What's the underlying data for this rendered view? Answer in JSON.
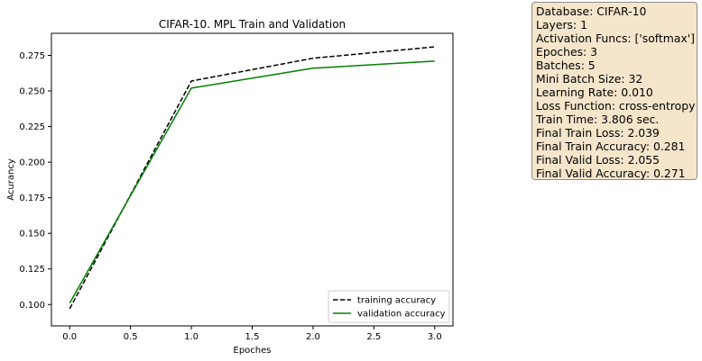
{
  "chart_data": {
    "type": "line",
    "title": "CIFAR-10. MPL Train and Validation",
    "xlabel": "Epoches",
    "ylabel": "Acurancy",
    "xlim": [
      -0.15,
      3.15
    ],
    "ylim": [
      0.085,
      0.2905
    ],
    "x_ticks": [
      0.0,
      0.5,
      1.0,
      1.5,
      2.0,
      2.5,
      3.0
    ],
    "x_tick_labels": [
      "0.0",
      "0.5",
      "1.0",
      "1.5",
      "2.0",
      "2.5",
      "3.0"
    ],
    "y_ticks": [
      0.1,
      0.125,
      0.15,
      0.175,
      0.2,
      0.225,
      0.25,
      0.275
    ],
    "y_tick_labels": [
      "0.100",
      "0.125",
      "0.150",
      "0.175",
      "0.200",
      "0.225",
      "0.250",
      "0.275"
    ],
    "grid": false,
    "legend_placement": "lower-right",
    "x": [
      0,
      1,
      2,
      3
    ],
    "series": [
      {
        "name": "training accuracy",
        "values": [
          0.097,
          0.257,
          0.273,
          0.281
        ],
        "color": "#000000",
        "style": "dashed"
      },
      {
        "name": "validation accuracy",
        "values": [
          0.101,
          0.252,
          0.266,
          0.271
        ],
        "color": "#008000",
        "style": "solid"
      }
    ]
  },
  "info_box": {
    "lines": [
      "Database: CIFAR-10",
      "Layers: 1",
      "Activation Funcs: ['softmax']",
      "Epoches: 3",
      "Batches: 5",
      "Mini Batch Size: 32",
      "Learning Rate: 0.010",
      "Loss Function: cross-entropy",
      "Train Time: 3.806 sec.",
      "Final Train Loss: 2.039",
      "Final Train Accuracy: 0.281",
      "Final Valid Loss: 2.055",
      "Final Valid Accuracy: 0.271"
    ],
    "background": "#f5e6cb"
  }
}
